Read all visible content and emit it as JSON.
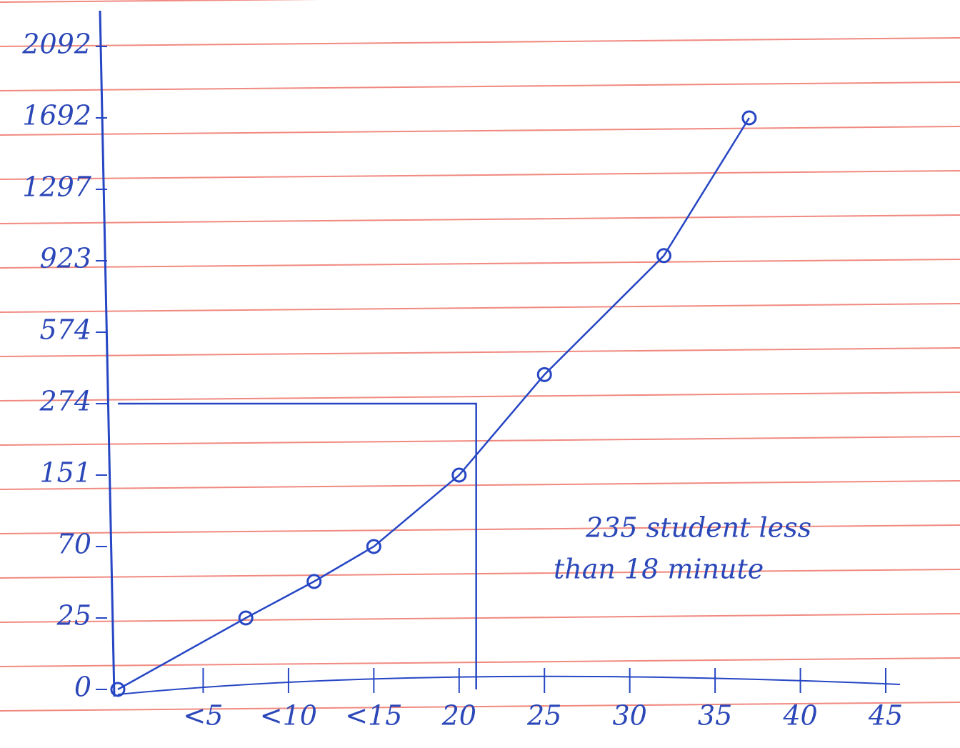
{
  "chart_data": {
    "type": "line",
    "x": [
      0,
      7.5,
      11.5,
      15,
      20,
      25,
      32,
      37
    ],
    "series": [
      {
        "color": "#2646c4",
        "values": [
          0,
          25,
          48,
          70,
          151,
          396,
          950,
          1692
        ]
      }
    ],
    "xlim": [
      0,
      45
    ],
    "xticks": [
      {
        "value": 5,
        "label": "<5"
      },
      {
        "value": 10,
        "label": "<10"
      },
      {
        "value": 15,
        "label": "<15"
      },
      20,
      25,
      30,
      35,
      40,
      45
    ],
    "ylim": [
      0,
      2092
    ],
    "yticks": [
      0,
      25,
      70,
      151,
      274,
      574,
      923,
      1297,
      1692,
      2092
    ],
    "annotation_point": {
      "x": 21,
      "y": 274
    },
    "annotation": [
      "235 student less",
      "than 18 minute"
    ]
  }
}
